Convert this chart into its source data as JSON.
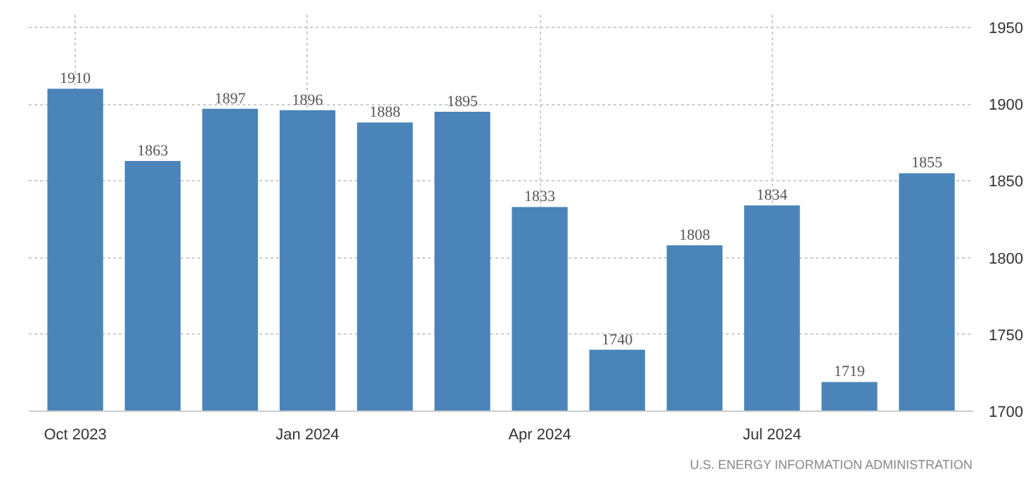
{
  "chart_data": {
    "type": "bar",
    "categories": [
      "Oct 2023",
      null,
      null,
      "Jan 2024",
      null,
      null,
      "Apr 2024",
      null,
      null,
      "Jul 2024",
      null,
      null
    ],
    "values": [
      1910,
      1863,
      1897,
      1896,
      1888,
      1895,
      1833,
      1740,
      1808,
      1834,
      1719,
      1855
    ],
    "color": "#4a84b9",
    "ylim": [
      1700,
      1960
    ],
    "yticks": [
      1700,
      1750,
      1800,
      1850,
      1900,
      1950
    ],
    "grid": true,
    "data_labels": true,
    "annotations": [
      "U.S. ENERGY INFORMATION ADMINISTRATION"
    ]
  }
}
